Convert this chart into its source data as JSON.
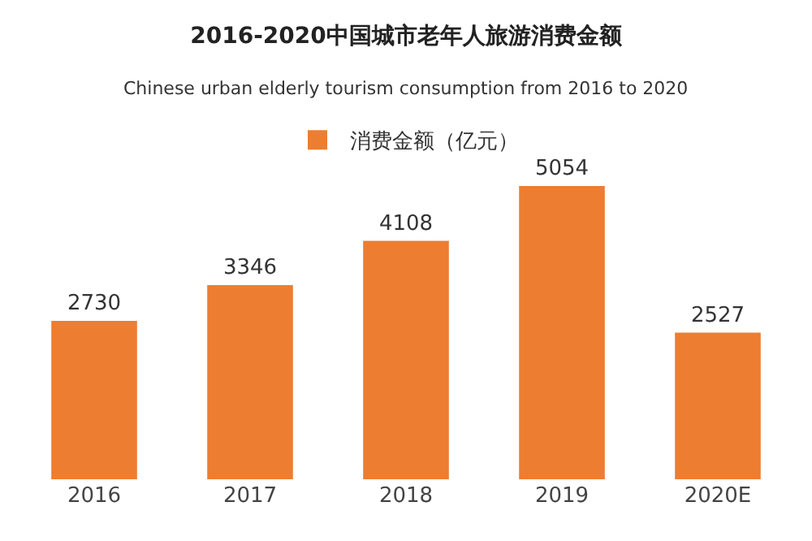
{
  "chart_data": {
    "type": "bar",
    "title": "2016-2020中国城市老年人旅游消费金额",
    "subtitle": "Chinese urban elderly tourism consumption from 2016 to 2020",
    "categories": [
      "2016",
      "2017",
      "2018",
      "2019",
      "2020E"
    ],
    "series": [
      {
        "name": "消费金额（亿元）",
        "color": "#ed7d31",
        "values": [
          2730,
          3346,
          4108,
          5054,
          2527
        ]
      }
    ],
    "data_labels": true,
    "legend": "top",
    "grid": false
  }
}
